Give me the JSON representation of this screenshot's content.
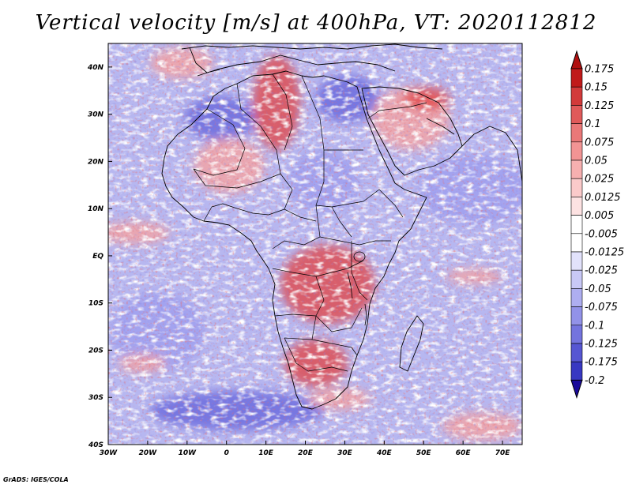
{
  "title": "Vertical velocity [m/s] at 400hPa, VT: 2020112812",
  "credit": "GrADS: IGES/COLA",
  "map": {
    "lon_range": [
      -30,
      75
    ],
    "lat_range": [
      -40,
      45
    ],
    "x_ticks": [
      {
        "value": -30,
        "label": "30W"
      },
      {
        "value": -20,
        "label": "20W"
      },
      {
        "value": -10,
        "label": "10W"
      },
      {
        "value": 0,
        "label": "0"
      },
      {
        "value": 10,
        "label": "10E"
      },
      {
        "value": 20,
        "label": "20E"
      },
      {
        "value": 30,
        "label": "30E"
      },
      {
        "value": 40,
        "label": "40E"
      },
      {
        "value": 50,
        "label": "50E"
      },
      {
        "value": 60,
        "label": "60E"
      },
      {
        "value": 70,
        "label": "70E"
      }
    ],
    "y_ticks": [
      {
        "value": 40,
        "label": "40N"
      },
      {
        "value": 30,
        "label": "30N"
      },
      {
        "value": 20,
        "label": "20N"
      },
      {
        "value": 10,
        "label": "10N"
      },
      {
        "value": 0,
        "label": "EQ"
      },
      {
        "value": -10,
        "label": "10S"
      },
      {
        "value": -20,
        "label": "20S"
      },
      {
        "value": -30,
        "label": "30S"
      },
      {
        "value": -40,
        "label": "40S"
      }
    ]
  },
  "colorbar": {
    "levels": [
      {
        "label": "0.175",
        "color": "#c01a1a"
      },
      {
        "label": "0.15",
        "color": "#d23a3a"
      },
      {
        "label": "0.125",
        "color": "#e05a5a"
      },
      {
        "label": "0.1",
        "color": "#ea7878"
      },
      {
        "label": "0.075",
        "color": "#f29494"
      },
      {
        "label": "0.05",
        "color": "#f7b0b0"
      },
      {
        "label": "0.025",
        "color": "#fbcaca"
      },
      {
        "label": "0.0125",
        "color": "#fde2e2"
      },
      {
        "label": "0.005",
        "color": "#ffffff"
      },
      {
        "label": "-0.005",
        "color": "#ffffff"
      },
      {
        "label": "-0.0125",
        "color": "#e2e2fb"
      },
      {
        "label": "-0.025",
        "color": "#c8c8f6"
      },
      {
        "label": "-0.05",
        "color": "#aeaef0"
      },
      {
        "label": "-0.075",
        "color": "#9292e8"
      },
      {
        "label": "-0.1",
        "color": "#7474de"
      },
      {
        "label": "-0.125",
        "color": "#5656d2"
      },
      {
        "label": "-0.175",
        "color": "#3838c2"
      },
      {
        "label": "-0.2",
        "color": "#2020a8"
      }
    ],
    "top_tip_color": "#b01010",
    "bottom_tip_color": "#1a0a9a"
  },
  "palette": {
    "ocean": "#b7b7f0",
    "land": "#c7bff0",
    "up_strong": "#e24040",
    "up_weak": "#f5a3a3",
    "down_strong": "#6262dc",
    "down_weak": "#9a9aee",
    "border": "#000000"
  }
}
